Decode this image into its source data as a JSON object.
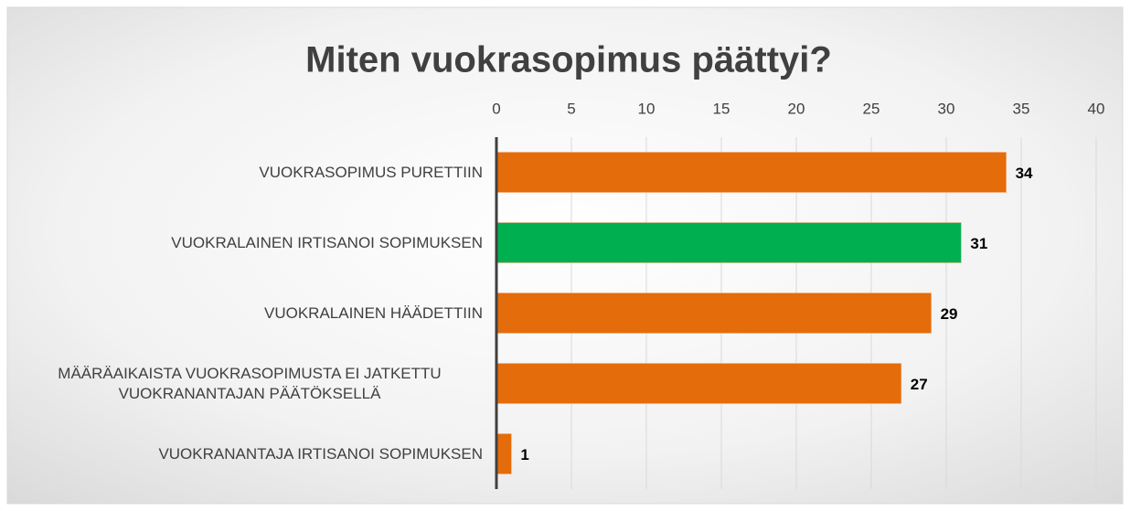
{
  "chart_data": {
    "type": "bar",
    "orientation": "horizontal",
    "title": "Miten vuokrasopimus päättyi?",
    "categories": [
      "VUOKRASOPIMUS PURETTIIN",
      "VUOKRALAINEN IRTISANOI SOPIMUKSEN",
      "VUOKRALAINEN HÄÄDETTIIN",
      "MÄÄRÄAIKAISTA VUOKRASOPIMUSTA EI JATKETTU VUOKRANANTAJAN PÄÄTÖKSELLÄ",
      "VUOKRANANTAJA IRTISANOI SOPIMUKSEN"
    ],
    "values": [
      34,
      31,
      29,
      27,
      1
    ],
    "colors": [
      "#e46c0a",
      "#00b050",
      "#e46c0a",
      "#e46c0a",
      "#e46c0a"
    ],
    "xlim": [
      0,
      40
    ],
    "xticks": [
      0,
      5,
      10,
      15,
      20,
      25,
      30,
      35,
      40
    ],
    "grid": true
  }
}
